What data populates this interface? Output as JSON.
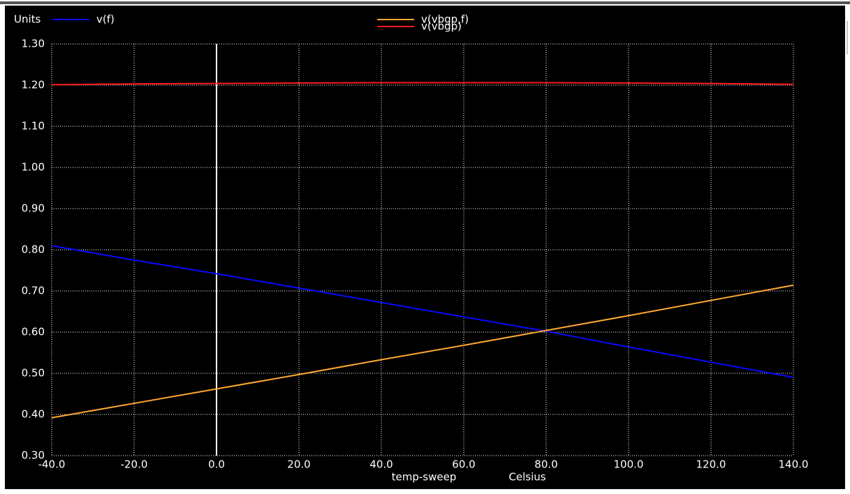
{
  "chart_data": {
    "type": "line",
    "y_label": "Units",
    "x_label": "temp-sweep",
    "x_unit": "Celsius",
    "x": [
      -40,
      -20,
      0,
      20,
      40,
      60,
      80,
      100,
      120,
      140
    ],
    "series": [
      {
        "name": "v(f)",
        "color": "#0a0aff",
        "values": [
          0.81,
          0.775,
          0.742,
          0.707,
          0.672,
          0.637,
          0.602,
          0.564,
          0.527,
          0.49
        ]
      },
      {
        "name": "v(vbgp,f)",
        "color": "#ffa833",
        "values": [
          0.392,
          0.427,
          0.462,
          0.497,
          0.533,
          0.568,
          0.604,
          0.64,
          0.677,
          0.714
        ]
      },
      {
        "name": "v(vbgp)",
        "color": "#ff1a1a",
        "values": [
          1.201,
          1.203,
          1.204,
          1.205,
          1.206,
          1.206,
          1.206,
          1.205,
          1.204,
          1.202
        ]
      }
    ],
    "xlim": [
      -40,
      140
    ],
    "xticks": [
      {
        "value": -40,
        "label": "-40.0"
      },
      {
        "value": -20,
        "label": "-20.0"
      },
      {
        "value": 0,
        "label": "0.0"
      },
      {
        "value": 20,
        "label": "20.0"
      },
      {
        "value": 40,
        "label": "40.0"
      },
      {
        "value": 60,
        "label": "60.0"
      },
      {
        "value": 80,
        "label": "80.0"
      },
      {
        "value": 100,
        "label": "100.0"
      },
      {
        "value": 120,
        "label": "120.0"
      },
      {
        "value": 140,
        "label": "140.0"
      }
    ],
    "ylim": [
      0.3,
      1.3
    ],
    "yticks": [
      {
        "value": 0.3,
        "label": "0.30"
      },
      {
        "value": 0.4,
        "label": "0.40"
      },
      {
        "value": 0.5,
        "label": "0.50"
      },
      {
        "value": 0.6,
        "label": "0.60"
      },
      {
        "value": 0.7,
        "label": "0.70"
      },
      {
        "value": 0.8,
        "label": "0.80"
      },
      {
        "value": 0.9,
        "label": "0.90"
      },
      {
        "value": 1.0,
        "label": "1.00"
      },
      {
        "value": 1.1,
        "label": "1.10"
      },
      {
        "value": 1.2,
        "label": "1.20"
      },
      {
        "value": 1.3,
        "label": "1.30"
      }
    ],
    "grid": true
  }
}
